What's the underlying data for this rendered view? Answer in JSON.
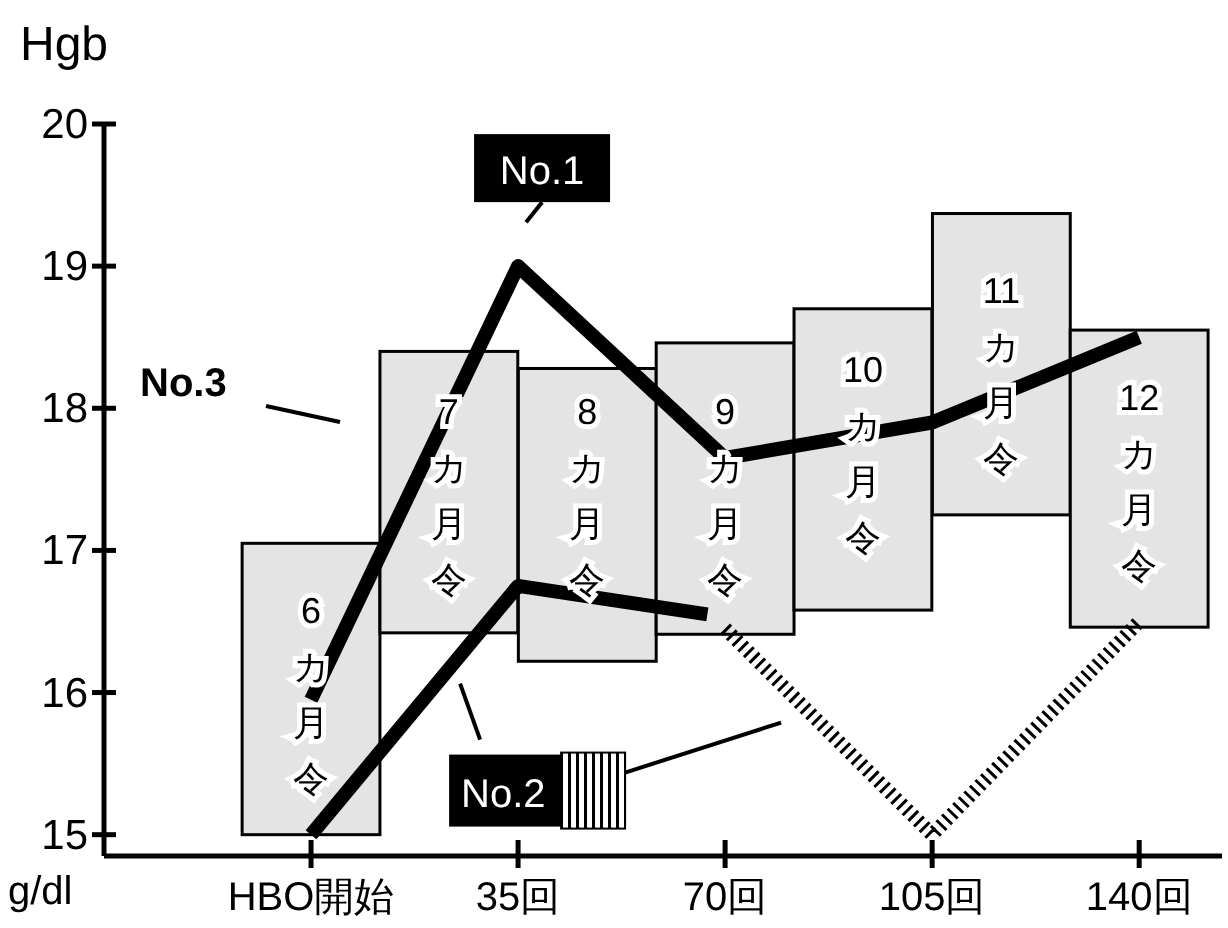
{
  "chart_data": {
    "type": "bar",
    "ylabel": "Hgb",
    "x": [
      0,
      35,
      70,
      105,
      140
    ],
    "xlim": [
      -35,
      154
    ],
    "ylim": [
      14.85,
      20
    ],
    "xticks": [
      {
        "value": 0,
        "label": "HBO開始"
      },
      {
        "value": 35,
        "label": "35回"
      },
      {
        "value": 70,
        "label": "70回"
      },
      {
        "value": 105,
        "label": "105回"
      },
      {
        "value": 140,
        "label": "140回"
      }
    ],
    "yticks": [
      15,
      16,
      17,
      18,
      19,
      20
    ],
    "grid": false,
    "legend": false,
    "series": [
      {
        "color": "#e4e4e4",
        "x": [
          0,
          23.3,
          46.7,
          70,
          93.3,
          116.7,
          140
        ],
        "base": [
          15.0,
          16.42,
          16.22,
          16.41,
          16.58,
          17.25,
          16.46
        ],
        "values": [
          2.05,
          1.98,
          2.06,
          2.05,
          2.12,
          2.12,
          2.09
        ]
      },
      {
        "type": "line",
        "name": "No.1",
        "color": "#000000",
        "line_style": "solid",
        "values": [
          15.95,
          19.0,
          17.65,
          17.9,
          18.5
        ]
      },
      {
        "type": "line",
        "color": "#000000",
        "line_style": "solid",
        "x": [
          0,
          35,
          67
        ],
        "values": [
          15.0,
          16.75,
          16.55
        ]
      },
      {
        "type": "line",
        "name": "No.2",
        "color": "#000000",
        "line_style": "dotted",
        "x": [
          70,
          105,
          140
        ],
        "values": [
          16.45,
          15.0,
          16.5
        ]
      }
    ],
    "annotations": [
      "g/dl",
      "No.3",
      "6カ月令",
      "7カ月令",
      "8カ月令",
      "9カ月令",
      "10カ月令",
      "11カ月令",
      "12カ月令"
    ]
  }
}
